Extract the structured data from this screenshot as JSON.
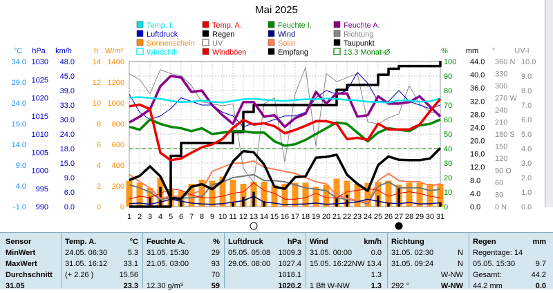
{
  "title": "Mai 2025",
  "legend": [
    {
      "label": "Temp. I.",
      "color": "#00e5ee",
      "type": "box"
    },
    {
      "label": "Temp. A.",
      "color": "#ee0000",
      "type": "box"
    },
    {
      "label": "Feuchte I.",
      "color": "#008800",
      "type": "box"
    },
    {
      "label": "Feuchte A.",
      "color": "#8b008b",
      "type": "box"
    },
    {
      "label": "Luftdruck",
      "color": "#0000cc",
      "type": "box"
    },
    {
      "label": "Regen",
      "color": "#000000",
      "type": "box"
    },
    {
      "label": "Wind",
      "color": "#000080",
      "type": "box"
    },
    {
      "label": "Richtung",
      "color": "#888888",
      "type": "box"
    },
    {
      "label": "Sonnenschein",
      "color": "#ff8c00",
      "type": "box"
    },
    {
      "label": "UV",
      "color": "#777777",
      "type": "hollow"
    },
    {
      "label": "Solar",
      "color": "#ff7f50",
      "type": "box"
    },
    {
      "label": "Taupunkt",
      "color": "#000000",
      "type": "box"
    },
    {
      "label": "Windchill",
      "color": "#00e5ee",
      "type": "hollow"
    },
    {
      "label": "Windböen",
      "color": "#ee0000",
      "type": "box"
    },
    {
      "label": "Empfang",
      "color": "#000000",
      "type": "box"
    },
    {
      "label": "13.3 Monat-Ø",
      "color": "#008800",
      "type": "hollow"
    }
  ],
  "axes": {
    "c": {
      "unit": "°C",
      "color": "#1e90ff",
      "ticks": [
        "34.0",
        "29.0",
        "24.0",
        "19.0",
        "14.0",
        "9.0",
        "4.0",
        "-1.0"
      ]
    },
    "hpa": {
      "unit": "hPa",
      "color": "#0000cc",
      "ticks": [
        "1030",
        "1025",
        "1020",
        "1015",
        "1010",
        "1005",
        "1000",
        "995",
        "990"
      ]
    },
    "kmh": {
      "unit": "km/h",
      "color": "#0000cc",
      "ticks": [
        "48.0",
        "45.0",
        "39.0",
        "33.0",
        "30.0",
        "24.0",
        "18.0",
        "15.0",
        "9.0",
        "6.0",
        "0.0"
      ]
    },
    "h": {
      "unit": "h",
      "color": "#ff8c00"
    },
    "wm2": {
      "unit": "W/m²",
      "color": "#ff8c00",
      "ticks": [
        "1400",
        "1200",
        "1000",
        "800",
        "600",
        "400",
        "200",
        "0"
      ]
    },
    "h_ticks": [
      "14",
      "12",
      "10",
      "8",
      "6",
      "4",
      "2",
      "0"
    ],
    "pct": {
      "unit": "%",
      "color": "#008800",
      "ticks": [
        "100",
        "90",
        "80",
        "70",
        "60",
        "50",
        "40",
        "30",
        "20",
        "10",
        "0"
      ]
    },
    "mm": {
      "unit": "mm",
      "color": "#000000",
      "ticks": [
        "44.0",
        "40.0",
        "36.0",
        "32.0",
        "28.0",
        "24.0",
        "20.0",
        "16.0",
        "12.0",
        "8.0",
        "4.0",
        "0.0"
      ]
    },
    "deg": {
      "unit": "°",
      "color": "#888888",
      "ticks": [
        "360 N",
        "330",
        "300",
        "270 W",
        "240",
        "210",
        "180 S",
        "150",
        "120",
        "90 O",
        "60",
        "30",
        "0 N"
      ]
    },
    "uvi": {
      "unit": "UV-I",
      "color": "#888888",
      "ticks": [
        "10.0",
        "9.0",
        "8.0",
        "7.0",
        "6.0",
        "5.0",
        "4.0",
        "3.0",
        "2.0",
        "1.0",
        "0.0"
      ]
    }
  },
  "chart_data": {
    "type": "line",
    "x": [
      1,
      2,
      3,
      4,
      5,
      6,
      7,
      8,
      9,
      10,
      11,
      12,
      13,
      14,
      15,
      16,
      17,
      18,
      19,
      20,
      21,
      22,
      23,
      24,
      25,
      26,
      27,
      28,
      29,
      30,
      31
    ],
    "x_tick_labels": [
      "1",
      "2",
      "3",
      "4",
      "5",
      "6",
      "7",
      "8",
      "9",
      "10",
      "11",
      "12",
      "13",
      "14",
      "15",
      "16",
      "17",
      "18",
      "19",
      "20",
      "21",
      "22",
      "23",
      "24",
      "25",
      "26",
      "27",
      "28",
      "29",
      "30",
      "31"
    ],
    "moon_phases": [
      {
        "day": 13,
        "phase": "full"
      },
      {
        "day": 27,
        "phase": "new"
      }
    ],
    "monthly_mean_pct": 40,
    "series": [
      {
        "name": "Temp. I.",
        "axis": "c",
        "color": "#00e5ee",
        "width": 2.5,
        "values": [
          25.3,
          25.4,
          25.2,
          25.0,
          24.5,
          24.2,
          24.3,
          24.6,
          24.3,
          24.1,
          24.5,
          24.9,
          25.0,
          24.8,
          24.6,
          24.5,
          24.7,
          24.9,
          24.9,
          25.1,
          25.0,
          24.7,
          24.6,
          24.3,
          24.2,
          24.1,
          24.6,
          24.6,
          24.3,
          24.4,
          25.1
        ]
      },
      {
        "name": "Temp. A.",
        "axis": "c",
        "color": "#ee0000",
        "width": 3.5,
        "values": [
          23.2,
          23.6,
          22.5,
          12.0,
          10.2,
          10.6,
          12.0,
          13.3,
          14.0,
          15.3,
          18.0,
          19.9,
          18.8,
          19.1,
          18.4,
          16.7,
          17.5,
          18.5,
          19.6,
          19.6,
          19.0,
          15.3,
          15.6,
          15.1,
          19.0,
          17.6,
          17.6,
          17.6,
          18.8,
          22.0,
          25.0
        ]
      },
      {
        "name": "Feuchte I.",
        "axis": "pct",
        "color": "#008800",
        "width": 3.5,
        "values": [
          55,
          53,
          60,
          57,
          55,
          54,
          52,
          54,
          50,
          51,
          52,
          52,
          51,
          51,
          45,
          42,
          43,
          46,
          50,
          54,
          58,
          57,
          51,
          45,
          51,
          54,
          53,
          52,
          56,
          57,
          60
        ]
      },
      {
        "name": "Feuchte A.",
        "axis": "pct",
        "color": "#8b008b",
        "width": 3.5,
        "values": [
          58,
          62,
          67,
          83,
          90,
          89,
          79,
          80,
          70,
          63,
          57,
          72,
          72,
          62,
          63,
          55,
          61,
          64,
          79,
          71,
          78,
          78,
          62,
          63,
          76,
          71,
          71,
          72,
          76,
          69,
          62
        ]
      },
      {
        "name": "Taupunkt",
        "axis": "c",
        "color": "#000000",
        "width": 3.5,
        "values": [
          5.4,
          6.4,
          8.7,
          6.3,
          1.1,
          0.9,
          3.8,
          4.4,
          3.2,
          5.2,
          9.9,
          12.4,
          12.1,
          9.2,
          3.8,
          3.3,
          6.1,
          6.3,
          10.8,
          11.0,
          11.5,
          6.7,
          4.5,
          2.8,
          9.0,
          11.1,
          10.3,
          10.2,
          10.2,
          10.6,
          13.1
        ]
      },
      {
        "name": "Regen",
        "axis": "mm",
        "color": "#000000",
        "width": 3.5,
        "step": true,
        "values": [
          0,
          0,
          0,
          0,
          15.4,
          19.3,
          19.3,
          19.3,
          19.3,
          19.3,
          22.6,
          28.7,
          30.8,
          30.8,
          30.8,
          30.8,
          30.8,
          30.8,
          30.8,
          30.8,
          35.4,
          36.9,
          36.9,
          36.9,
          40.0,
          41.8,
          42.6,
          42.6,
          42.6,
          42.6,
          44.2
        ]
      },
      {
        "name": "Luftdruck",
        "axis": "hpa",
        "color": "#0000cc",
        "width": 1,
        "values": [
          1021,
          1016,
          1014,
          1015,
          1017,
          1020,
          1019,
          1018,
          1018,
          1016,
          1015,
          1012,
          1013,
          1013,
          1014,
          1015,
          1015,
          1016,
          1020,
          1022,
          1021,
          1022,
          1027,
          1024,
          1019,
          1019,
          1022,
          1019,
          1018,
          1017,
          1018
        ]
      },
      {
        "name": "Wind",
        "axis": "kmh",
        "color": "#000080",
        "width": 1.5,
        "values": [
          1.0,
          1.2,
          0.8,
          1.5,
          2.5,
          1.8,
          1.2,
          0.9,
          0.8,
          1.0,
          1.5,
          2.0,
          3.5,
          1.5,
          1.2,
          0.6,
          0.8,
          0.9,
          1.2,
          0.8,
          1.0,
          1.2,
          1.6,
          2.5,
          1.8,
          1.2,
          1.0,
          1.4,
          0.9,
          1.0,
          1.3
        ]
      },
      {
        "name": "Windböen",
        "axis": "kmh",
        "color": "#ee0000",
        "width": 1,
        "values": [
          2.5,
          3.5,
          3.0,
          4.5,
          6.0,
          5.5,
          4.0,
          3.0,
          3.0,
          3.5,
          4.5,
          5.0,
          8.0,
          5.5,
          4.5,
          2.5,
          2.5,
          3.0,
          4.5,
          3.0,
          3.0,
          5.0,
          5.5,
          6.0,
          5.5,
          3.5,
          4.5,
          5.0,
          4.5,
          3.5,
          3.0
        ]
      },
      {
        "name": "Richtung",
        "axis": "deg",
        "color": "#888888",
        "width": 1,
        "values": [
          330,
          315,
          280,
          340,
          330,
          325,
          300,
          260,
          255,
          250,
          255,
          95,
          60,
          255,
          270,
          110,
          280,
          345,
          150,
          330,
          310,
          320,
          330,
          210,
          205,
          220,
          230,
          300,
          255,
          235,
          230
        ]
      },
      {
        "name": "UV",
        "axis": "uvi",
        "color": "#777777",
        "width": 2,
        "values": [
          1.5,
          1.3,
          1.0,
          0.5,
          0.6,
          0.6,
          0.6,
          0.7,
          1.5,
          1.7,
          2.0,
          2.1,
          2.2,
          1.8,
          1.8,
          1.7,
          1.5,
          1.3,
          1.2,
          1.1,
          0.6,
          0.5,
          0.4,
          0.2,
          1.4,
          1.7,
          1.3,
          1.3,
          1.3,
          1.1,
          1.2
        ]
      },
      {
        "name": "Solar",
        "axis": "wm2",
        "color": "#ff7f50",
        "width": 2,
        "values": [
          310,
          240,
          180,
          80,
          100,
          100,
          120,
          160,
          340,
          380,
          420,
          420,
          440,
          380,
          360,
          340,
          320,
          280,
          240,
          220,
          110,
          80,
          60,
          40,
          250,
          320,
          250,
          240,
          240,
          200,
          220
        ]
      }
    ],
    "bars": [
      {
        "name": "Sonnenschein",
        "axis": "h",
        "color": "#ff8c00",
        "values": [
          2.5,
          2.3,
          1.8,
          2.8,
          1.7,
          1.5,
          2.2,
          2.6,
          2.5,
          2.9,
          2.6,
          2.2,
          2.4,
          2.4,
          2.1,
          2.2,
          2.3,
          2.3,
          1.9,
          2.1,
          2.7,
          2.5,
          2.2,
          2.3,
          2.4,
          2.5,
          2.1,
          2.3,
          2.3,
          2.2,
          2.2
        ]
      },
      {
        "name": "Regen (Tag)",
        "axis": "mm",
        "color": "#000000",
        "values": [
          0,
          0,
          3.0,
          6.0,
          8.4,
          2.0,
          0,
          0,
          0,
          0,
          1.2,
          3.0,
          4.5,
          1.7,
          0,
          0,
          0,
          0,
          0,
          0,
          2.5,
          3.6,
          0,
          0,
          3.3,
          1.0,
          6.0,
          0,
          0,
          0,
          1.3
        ]
      }
    ]
  },
  "stats": {
    "header": [
      "Sensor",
      "Temp. A.",
      "°C",
      "Feuchte A.",
      "%",
      "Luftdruck",
      "hPa",
      "Wind",
      "km/h",
      "Richtung",
      "",
      "Regen",
      "mm"
    ],
    "rows": [
      {
        "label": "MinWert",
        "t_time": "24.05.  06:30",
        "t_val": "5.3",
        "f_time": "31.05.  15:30",
        "f_val": "29",
        "p_time": "05.05.  05:08",
        "p_val": "1009.3",
        "w_time": "31.05.  00:00",
        "w_val": "0.0",
        "r_time": "31.05.  02:30",
        "r_val": "N",
        "g_label": "Regentage: 14",
        "g_val": ""
      },
      {
        "label": "MaxWert",
        "t_time": "31.05.  16:12",
        "t_val": "33.1",
        "f_time": "21.05.  03:00",
        "f_val": "93",
        "p_time": "29.05.  08:00",
        "p_val": "1027.4",
        "w_time": "15.05.  16:22NW",
        "w_val": "13.4",
        "r_time": "31.05.  09:24",
        "r_val": "N",
        "g_label": "05.05.  15:30",
        "g_val": "9.7"
      },
      {
        "label": "Durchschnitt",
        "t_time": "(+ 2.26 )",
        "t_val": "15.56",
        "f_time": "",
        "f_val": "70",
        "p_time": "",
        "p_val": "1018.1",
        "w_time": "",
        "w_val": "1.3",
        "r_time": "",
        "r_val": "W-NW",
        "g_label": "Gesamt:",
        "g_val": "44.2"
      },
      {
        "label": "31.05",
        "t_time": "",
        "t_val": "23.3",
        "f_time": "12.30 g/m³",
        "f_val": "59",
        "p_time": "",
        "p_val": "1020.2",
        "w_time": "1 Bft W-NW",
        "w_val": "1.3",
        "r_time": "292 °",
        "r_val": "W-NW",
        "g_label": "44.2 mm",
        "g_val": "0.0"
      }
    ]
  }
}
